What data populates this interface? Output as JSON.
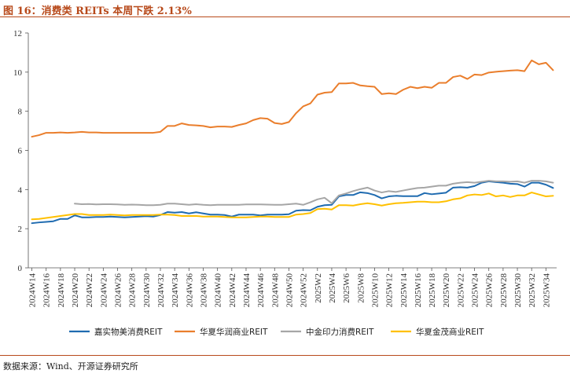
{
  "figure": {
    "title": "图 16：消费类 REITs 本周下跌 2.13%",
    "source": "数据来源：Wind、开源证券研究所"
  },
  "chart_data": {
    "type": "line",
    "title": "",
    "xlabel": "",
    "ylabel": "",
    "ylim": [
      0,
      12
    ],
    "yticks": [
      0,
      2,
      4,
      6,
      8,
      10,
      12
    ],
    "grid": false,
    "legend_position": "bottom",
    "x_tick_labels": [
      "2024W14",
      "2024W16",
      "2024W18",
      "2024W20",
      "2024W22",
      "2024W24",
      "2024W26",
      "2024W28",
      "2024W30",
      "2024W32",
      "2024W34",
      "2024W36",
      "2024W38",
      "2024W40",
      "2024W42",
      "2024W44",
      "2024W46",
      "2024W48",
      "2024W50",
      "2024W52",
      "2025W2",
      "2025W4",
      "2025W6",
      "2025W8",
      "2025W10",
      "2025W12",
      "2025W14",
      "2025W16",
      "2025W18",
      "2025W20",
      "2025W22",
      "2025W24",
      "2025W26",
      "2025W28",
      "2025W30",
      "2025W32",
      "2025W34"
    ],
    "x": [
      "2024W14",
      "2024W15",
      "2024W16",
      "2024W17",
      "2024W18",
      "2024W19",
      "2024W20",
      "2024W21",
      "2024W22",
      "2024W23",
      "2024W24",
      "2024W25",
      "2024W26",
      "2024W27",
      "2024W28",
      "2024W29",
      "2024W30",
      "2024W31",
      "2024W32",
      "2024W33",
      "2024W34",
      "2024W35",
      "2024W36",
      "2024W37",
      "2024W38",
      "2024W39",
      "2024W40",
      "2024W41",
      "2024W42",
      "2024W43",
      "2024W44",
      "2024W45",
      "2024W46",
      "2024W47",
      "2024W48",
      "2024W49",
      "2024W50",
      "2024W51",
      "2024W52",
      "2025W1",
      "2025W2",
      "2025W3",
      "2025W4",
      "2025W5",
      "2025W6",
      "2025W7",
      "2025W8",
      "2025W9",
      "2025W10",
      "2025W11",
      "2025W12",
      "2025W13",
      "2025W14",
      "2025W15",
      "2025W16",
      "2025W17",
      "2025W18",
      "2025W19",
      "2025W20",
      "2025W21",
      "2025W22",
      "2025W23",
      "2025W24",
      "2025W25",
      "2025W26",
      "2025W27",
      "2025W28",
      "2025W29",
      "2025W30",
      "2025W31",
      "2025W32",
      "2025W33",
      "2025W34",
      "2025W35"
    ],
    "series": [
      {
        "name": "嘉实物美消费REIT",
        "color": "#1f6bb0",
        "values": [
          2.28,
          2.32,
          2.35,
          2.38,
          2.5,
          2.5,
          2.68,
          2.58,
          2.58,
          2.6,
          2.6,
          2.62,
          2.6,
          2.58,
          2.6,
          2.62,
          2.64,
          2.62,
          2.7,
          2.85,
          2.82,
          2.85,
          2.78,
          2.84,
          2.78,
          2.72,
          2.72,
          2.7,
          2.62,
          2.72,
          2.72,
          2.72,
          2.68,
          2.72,
          2.72,
          2.72,
          2.74,
          2.92,
          2.95,
          2.94,
          3.12,
          3.2,
          3.22,
          3.65,
          3.72,
          3.72,
          3.86,
          3.82,
          3.72,
          3.55,
          3.65,
          3.68,
          3.66,
          3.66,
          3.66,
          3.82,
          3.76,
          3.8,
          3.84,
          4.1,
          4.12,
          4.1,
          4.18,
          4.35,
          4.42,
          4.38,
          4.35,
          4.3,
          4.28,
          4.15,
          4.35,
          4.35,
          4.25,
          4.08
        ]
      },
      {
        "name": "华夏华润商业REIT",
        "color": "#ea7e2c",
        "values": [
          6.7,
          6.78,
          6.9,
          6.9,
          6.92,
          6.9,
          6.92,
          6.95,
          6.92,
          6.92,
          6.9,
          6.9,
          6.9,
          6.9,
          6.9,
          6.9,
          6.9,
          6.9,
          6.95,
          7.25,
          7.25,
          7.38,
          7.3,
          7.28,
          7.25,
          7.18,
          7.22,
          7.22,
          7.2,
          7.3,
          7.38,
          7.55,
          7.65,
          7.62,
          7.4,
          7.35,
          7.45,
          7.9,
          8.25,
          8.4,
          8.85,
          8.95,
          8.98,
          9.42,
          9.42,
          9.45,
          9.32,
          9.28,
          9.25,
          8.88,
          8.92,
          8.88,
          9.1,
          9.25,
          9.18,
          9.25,
          9.2,
          9.45,
          9.45,
          9.75,
          9.82,
          9.65,
          9.88,
          9.85,
          9.98,
          10.02,
          10.05,
          10.08,
          10.1,
          10.05,
          10.6,
          10.4,
          10.48,
          10.1
        ]
      },
      {
        "name": "中金印力消费REIT",
        "color": "#a6a6a6",
        "values": [
          null,
          null,
          null,
          null,
          null,
          null,
          3.28,
          3.25,
          3.26,
          3.24,
          3.25,
          3.25,
          3.24,
          3.22,
          3.23,
          3.22,
          3.2,
          3.2,
          3.22,
          3.28,
          3.28,
          3.25,
          3.22,
          3.25,
          3.22,
          3.2,
          3.22,
          3.22,
          3.22,
          3.22,
          3.24,
          3.24,
          3.24,
          3.23,
          3.22,
          3.22,
          3.25,
          3.28,
          3.22,
          3.35,
          3.5,
          3.58,
          3.3,
          3.7,
          3.8,
          3.92,
          4.02,
          4.1,
          3.95,
          3.85,
          3.92,
          3.88,
          3.95,
          4.02,
          4.08,
          4.1,
          4.15,
          4.2,
          4.2,
          4.3,
          4.35,
          4.38,
          4.35,
          4.4,
          4.45,
          4.42,
          4.42,
          4.4,
          4.42,
          4.35,
          4.45,
          4.45,
          4.42,
          4.35
        ]
      },
      {
        "name": "华夏金茂商业REIT",
        "color": "#ffc000",
        "values": [
          2.48,
          2.5,
          2.55,
          2.6,
          2.65,
          2.7,
          2.75,
          2.75,
          2.7,
          2.7,
          2.7,
          2.72,
          2.7,
          2.68,
          2.7,
          2.7,
          2.7,
          2.7,
          2.72,
          2.72,
          2.7,
          2.65,
          2.65,
          2.65,
          2.62,
          2.62,
          2.62,
          2.6,
          2.58,
          2.58,
          2.58,
          2.6,
          2.62,
          2.62,
          2.6,
          2.6,
          2.6,
          2.72,
          2.75,
          2.8,
          3.0,
          3.02,
          2.98,
          3.2,
          3.2,
          3.18,
          3.25,
          3.3,
          3.25,
          3.18,
          3.25,
          3.3,
          3.32,
          3.35,
          3.38,
          3.38,
          3.35,
          3.35,
          3.4,
          3.5,
          3.55,
          3.7,
          3.75,
          3.72,
          3.8,
          3.65,
          3.7,
          3.62,
          3.7,
          3.7,
          3.85,
          3.75,
          3.65,
          3.68
        ]
      }
    ]
  }
}
